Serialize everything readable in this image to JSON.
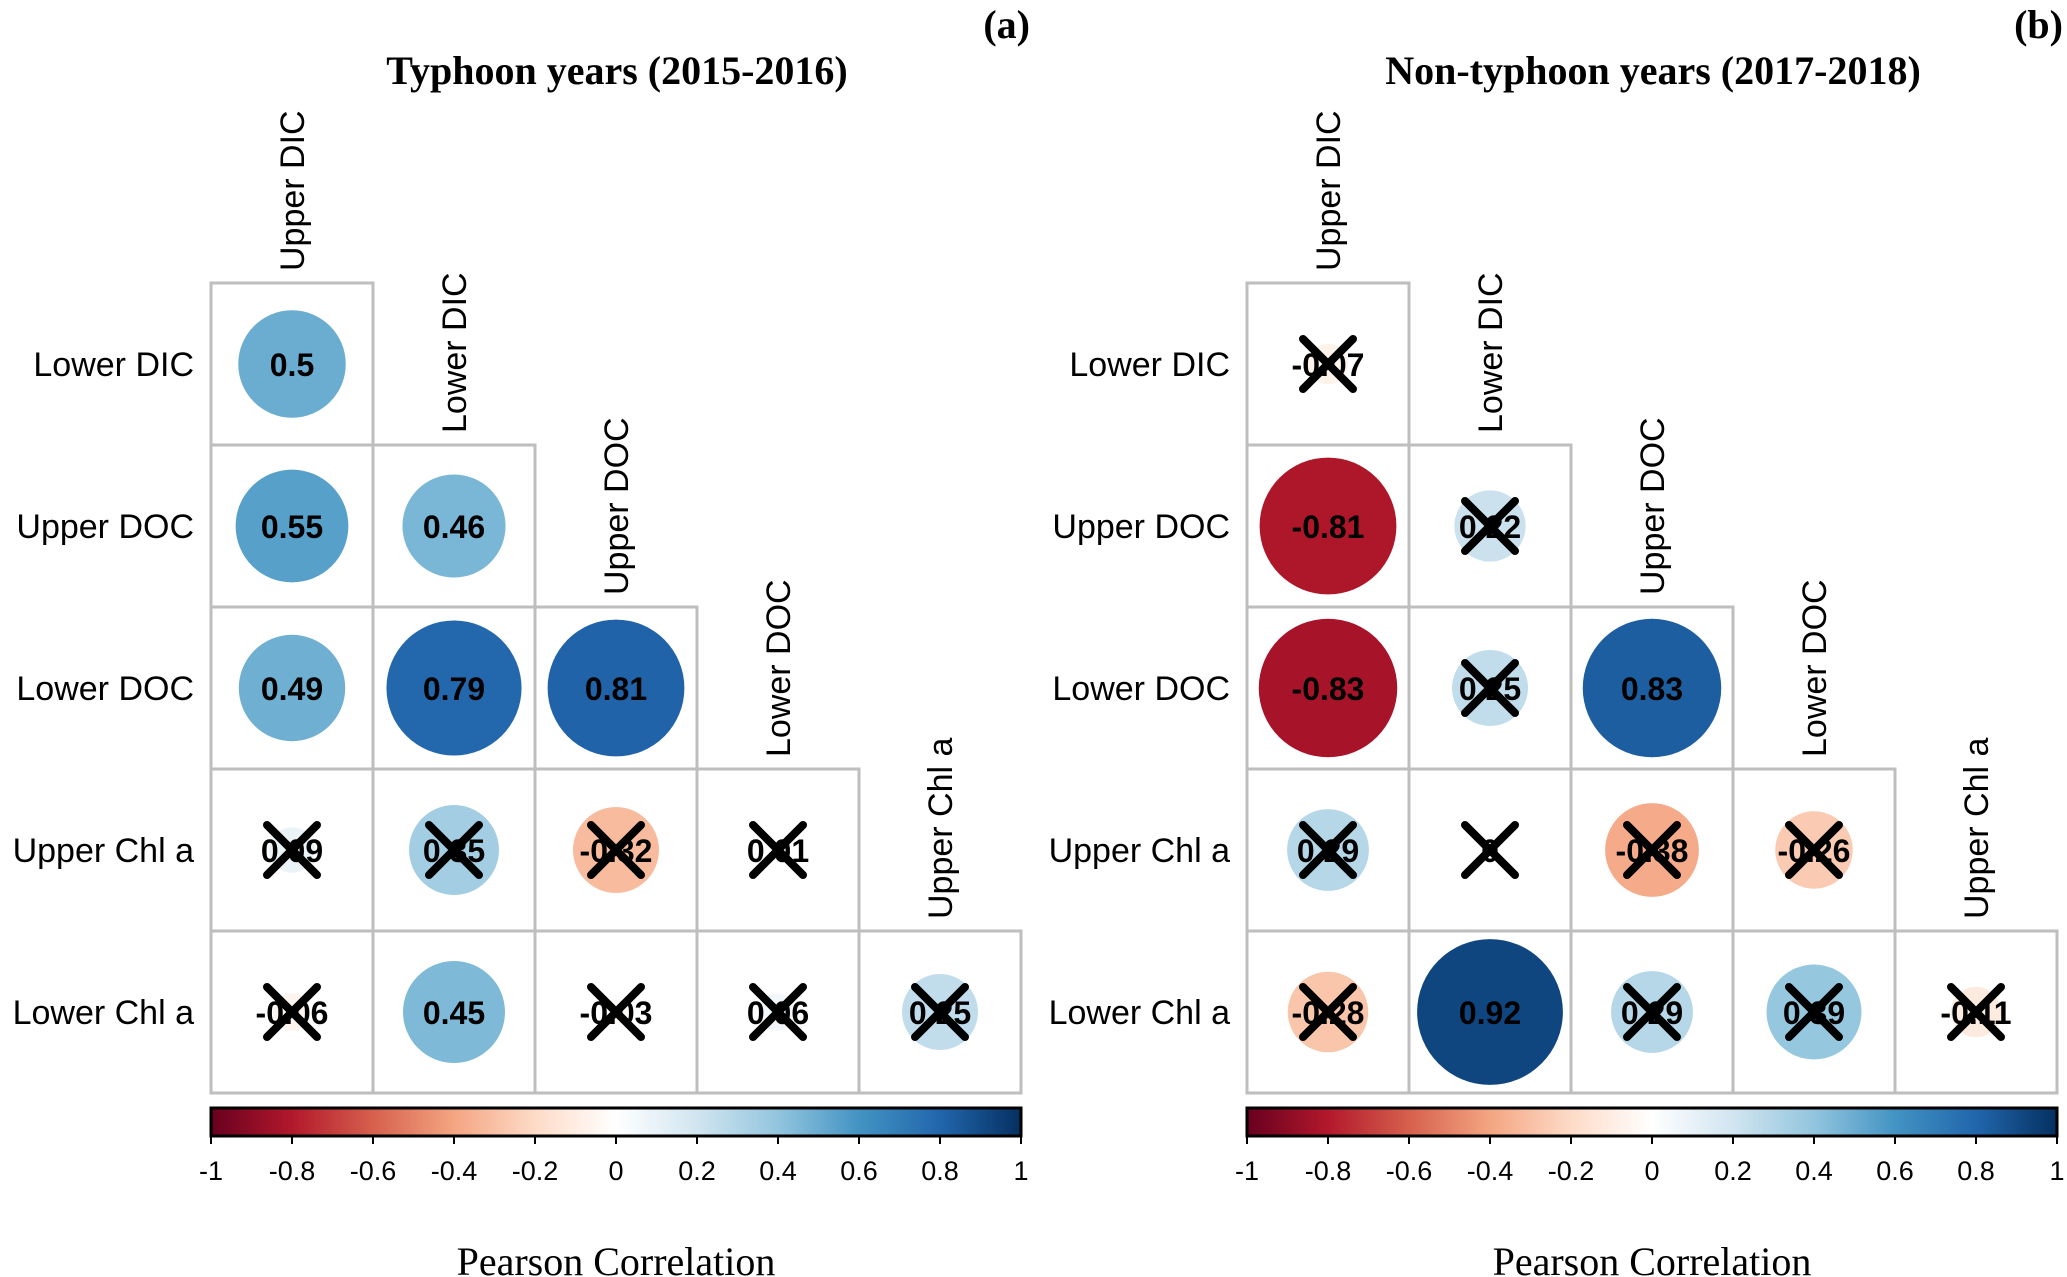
{
  "chart_data": [
    {
      "type": "heatmap",
      "panel_label": "(a)",
      "title": "Typhoon years (2015-2016)",
      "variables": [
        "Upper DIC",
        "Lower DIC",
        "Upper DOC",
        "Lower DOC",
        "Upper Chl a",
        "Lower Chl a"
      ],
      "lower_triangle": [
        [
          0.5
        ],
        [
          0.55,
          0.46
        ],
        [
          0.49,
          0.79,
          0.81
        ],
        [
          0.09,
          0.35,
          -0.32,
          0.01
        ],
        [
          -0.06,
          0.45,
          -0.03,
          0.06,
          0.25
        ]
      ],
      "not_significant": [
        [
          false
        ],
        [
          false,
          false
        ],
        [
          false,
          false,
          false
        ],
        [
          true,
          true,
          true,
          true
        ],
        [
          true,
          false,
          true,
          true,
          true
        ]
      ],
      "colorbar": {
        "label": "Pearson Correlation",
        "range": [
          -1,
          1
        ],
        "ticks": [
          "-1",
          "-0.8",
          "-0.6",
          "-0.4",
          "-0.2",
          "0",
          "0.2",
          "0.4",
          "0.6",
          "0.8",
          "1"
        ]
      }
    },
    {
      "type": "heatmap",
      "panel_label": "(b)",
      "title": "Non-typhoon years (2017-2018)",
      "variables": [
        "Upper DIC",
        "Lower DIC",
        "Upper DOC",
        "Lower DOC",
        "Upper Chl a",
        "Lower Chl a"
      ],
      "lower_triangle": [
        [
          -0.07
        ],
        [
          -0.81,
          0.22
        ],
        [
          -0.83,
          0.25,
          0.83
        ],
        [
          0.29,
          0,
          -0.38,
          -0.26
        ],
        [
          -0.28,
          0.92,
          0.29,
          0.39,
          -0.11
        ]
      ],
      "not_significant": [
        [
          true
        ],
        [
          false,
          true
        ],
        [
          false,
          true,
          false
        ],
        [
          true,
          true,
          true,
          true
        ],
        [
          true,
          false,
          true,
          true,
          true
        ]
      ],
      "colorbar": {
        "label": "Pearson Correlation",
        "range": [
          -1,
          1
        ],
        "ticks": [
          "-1",
          "-0.8",
          "-0.6",
          "-0.4",
          "-0.2",
          "0",
          "0.2",
          "0.4",
          "0.6",
          "0.8",
          "1"
        ]
      }
    }
  ],
  "colors": {
    "scale": [
      "#67001F",
      "#B2182B",
      "#D6604D",
      "#F4A582",
      "#FDDBC7",
      "#FFFFFF",
      "#D1E5F0",
      "#92C5DE",
      "#4393C3",
      "#2166AC",
      "#053061"
    ],
    "grid": "#BEBEBE"
  }
}
